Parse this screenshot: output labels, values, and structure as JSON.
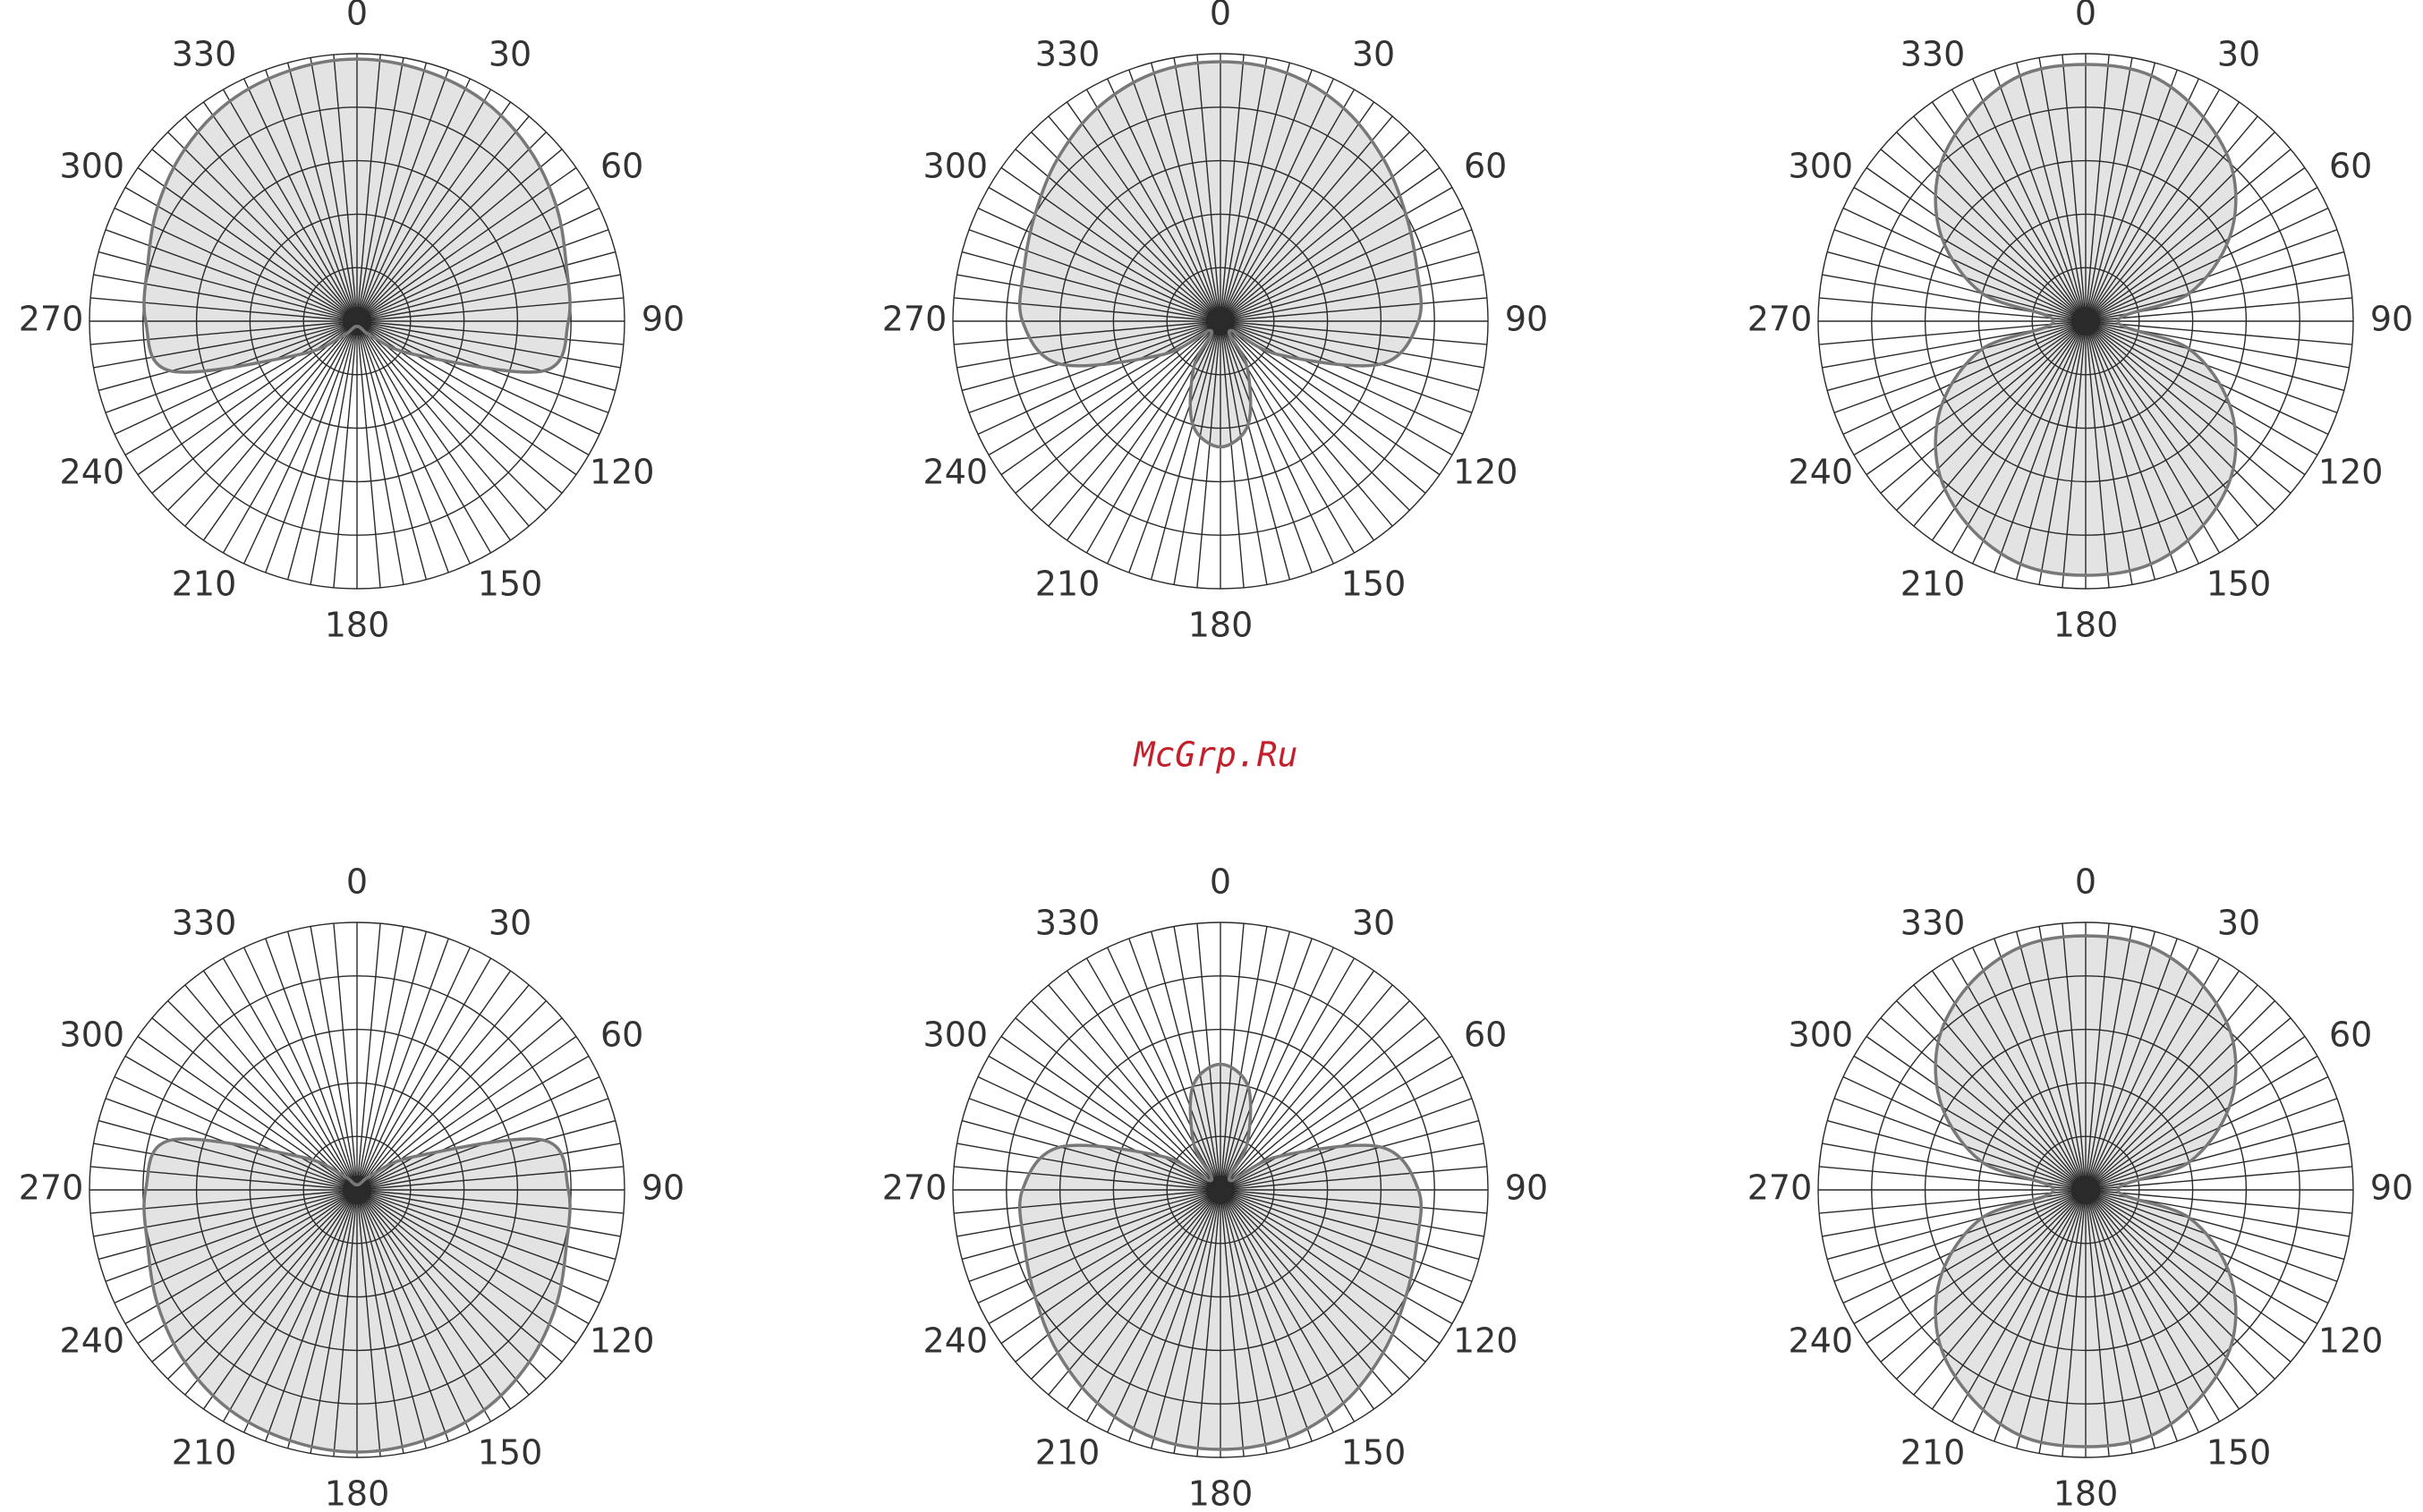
{
  "watermark": "McGrp.Ru",
  "chart_data": [
    {
      "type": "polar",
      "theta": [
        0,
        15,
        30,
        45,
        60,
        75,
        90,
        105,
        120,
        135,
        150,
        165,
        180,
        195,
        210,
        225,
        240,
        255,
        270,
        285,
        300,
        315,
        330,
        345
      ],
      "values": [
        0.98,
        0.97,
        0.95,
        0.91,
        0.86,
        0.81,
        0.79,
        0.72,
        0.25,
        0.08,
        0.03,
        0.02,
        0.02,
        0.02,
        0.03,
        0.08,
        0.25,
        0.72,
        0.79,
        0.81,
        0.86,
        0.91,
        0.95,
        0.97
      ],
      "rlim": [
        0,
        1
      ],
      "rticks": [
        0.2,
        0.4,
        0.6,
        0.8,
        1
      ],
      "thetaticks": [
        0,
        30,
        60,
        90,
        120,
        150,
        180,
        210,
        240,
        270,
        300,
        330
      ],
      "color": "#e3e3e3",
      "line_color": "#787878"
    },
    {
      "type": "polar",
      "theta": [
        0,
        15,
        30,
        45,
        60,
        75,
        90,
        105,
        120,
        135,
        150,
        165,
        180,
        195,
        210,
        225,
        240,
        255,
        270,
        285,
        300,
        315,
        330,
        345
      ],
      "values": [
        0.97,
        0.96,
        0.92,
        0.86,
        0.8,
        0.76,
        0.74,
        0.62,
        0.25,
        0.05,
        0.2,
        0.4,
        0.47,
        0.4,
        0.2,
        0.05,
        0.25,
        0.62,
        0.74,
        0.76,
        0.8,
        0.86,
        0.92,
        0.96
      ],
      "rlim": [
        0,
        1
      ],
      "rticks": [
        0.2,
        0.4,
        0.6,
        0.8,
        1
      ],
      "thetaticks": [
        0,
        30,
        60,
        90,
        120,
        150,
        180,
        210,
        240,
        270,
        300,
        330
      ],
      "color": "#e3e3e3",
      "line_color": "#787878"
    },
    {
      "type": "polar",
      "theta": [
        0,
        15,
        30,
        45,
        60,
        75,
        90,
        105,
        120,
        135,
        150,
        165,
        180,
        195,
        210,
        225,
        240,
        255,
        270,
        285,
        300,
        315,
        330,
        345
      ],
      "values": [
        0.96,
        0.95,
        0.88,
        0.78,
        0.62,
        0.4,
        0.12,
        0.4,
        0.62,
        0.78,
        0.88,
        0.94,
        0.95,
        0.94,
        0.88,
        0.78,
        0.62,
        0.4,
        0.12,
        0.4,
        0.62,
        0.78,
        0.88,
        0.95
      ],
      "rlim": [
        0,
        1
      ],
      "rticks": [
        0.2,
        0.4,
        0.6,
        0.8,
        1
      ],
      "thetaticks": [
        0,
        30,
        60,
        90,
        120,
        150,
        180,
        210,
        240,
        270,
        300,
        330
      ],
      "color": "#e3e3e3",
      "line_color": "#787878"
    },
    {
      "type": "polar",
      "theta": [
        0,
        15,
        30,
        45,
        60,
        75,
        90,
        105,
        120,
        135,
        150,
        165,
        180,
        195,
        210,
        225,
        240,
        255,
        270,
        285,
        300,
        315,
        330,
        345
      ],
      "values": [
        0.02,
        0.02,
        0.03,
        0.08,
        0.25,
        0.72,
        0.79,
        0.81,
        0.86,
        0.91,
        0.95,
        0.97,
        0.98,
        0.97,
        0.95,
        0.91,
        0.86,
        0.81,
        0.79,
        0.72,
        0.25,
        0.08,
        0.03,
        0.02
      ],
      "rlim": [
        0,
        1
      ],
      "rticks": [
        0.2,
        0.4,
        0.6,
        0.8,
        1
      ],
      "thetaticks": [
        0,
        30,
        60,
        90,
        120,
        150,
        180,
        210,
        240,
        270,
        300,
        330
      ],
      "color": "#e3e3e3",
      "line_color": "#787878"
    },
    {
      "type": "polar",
      "theta": [
        0,
        15,
        30,
        45,
        60,
        75,
        90,
        105,
        120,
        135,
        150,
        165,
        180,
        195,
        210,
        225,
        240,
        255,
        270,
        285,
        300,
        315,
        330,
        345
      ],
      "values": [
        0.47,
        0.4,
        0.2,
        0.05,
        0.25,
        0.62,
        0.74,
        0.76,
        0.8,
        0.86,
        0.92,
        0.96,
        0.97,
        0.96,
        0.92,
        0.86,
        0.8,
        0.76,
        0.74,
        0.62,
        0.25,
        0.05,
        0.2,
        0.4
      ],
      "rlim": [
        0,
        1
      ],
      "rticks": [
        0.2,
        0.4,
        0.6,
        0.8,
        1
      ],
      "thetaticks": [
        0,
        30,
        60,
        90,
        120,
        150,
        180,
        210,
        240,
        270,
        300,
        330
      ],
      "color": "#e3e3e3",
      "line_color": "#787878"
    },
    {
      "type": "polar",
      "theta": [
        0,
        15,
        30,
        45,
        60,
        75,
        90,
        105,
        120,
        135,
        150,
        165,
        180,
        195,
        210,
        225,
        240,
        255,
        270,
        285,
        300,
        315,
        330,
        345
      ],
      "values": [
        0.95,
        0.94,
        0.88,
        0.78,
        0.62,
        0.4,
        0.12,
        0.4,
        0.62,
        0.78,
        0.88,
        0.95,
        0.96,
        0.95,
        0.88,
        0.78,
        0.62,
        0.4,
        0.12,
        0.4,
        0.62,
        0.78,
        0.88,
        0.94
      ],
      "rlim": [
        0,
        1
      ],
      "rticks": [
        0.2,
        0.4,
        0.6,
        0.8,
        1
      ],
      "thetaticks": [
        0,
        30,
        60,
        90,
        120,
        150,
        180,
        210,
        240,
        270,
        300,
        330
      ],
      "color": "#e3e3e3",
      "line_color": "#787878"
    }
  ]
}
